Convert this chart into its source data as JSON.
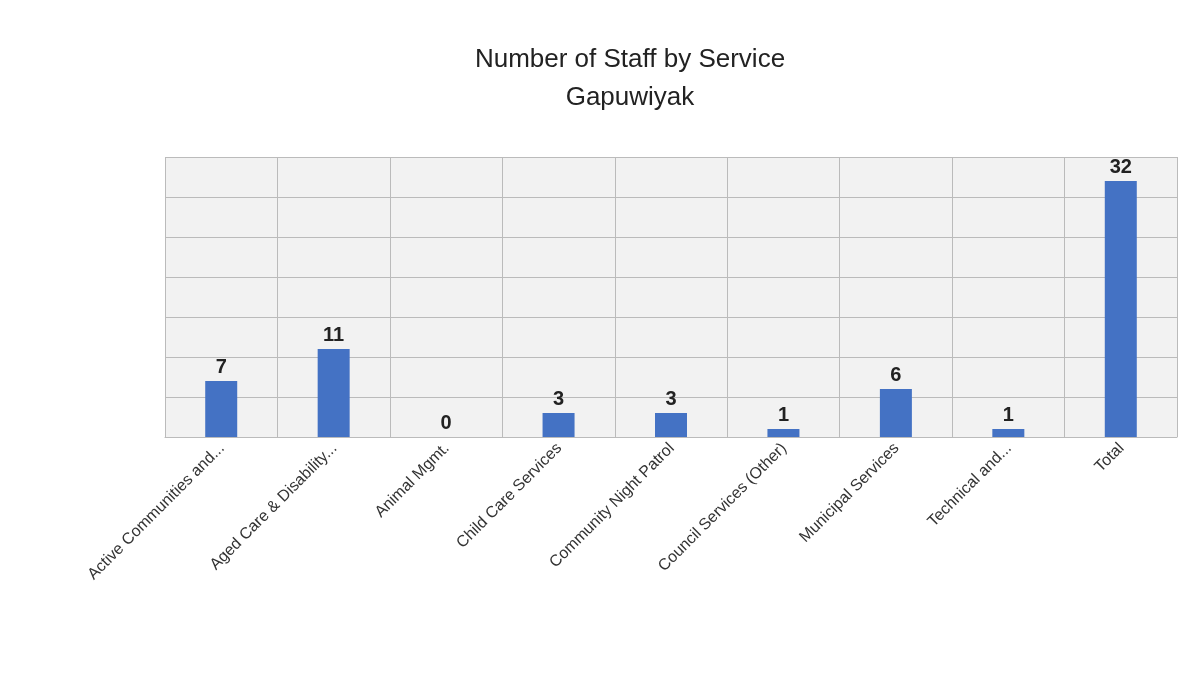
{
  "chart_data": {
    "type": "bar",
    "title": "Number of Staff by Service",
    "subtitle": "Gapuwiyak",
    "categories": [
      "Active Communities and...",
      "Aged Care & Disability...",
      "Animal Mgmt.",
      "Child Care Services",
      "Community Night Patrol",
      "Council Services (Other)",
      "Municipal Services",
      "Technical and...",
      "Total"
    ],
    "values": [
      7,
      11,
      0,
      3,
      3,
      1,
      6,
      1,
      32
    ],
    "color": "#4472c4",
    "ylim": [
      0,
      35
    ],
    "yticks": [
      0,
      5,
      10,
      15,
      20,
      25,
      30,
      35
    ],
    "tick_labels": "x",
    "grid": true,
    "data_labels": true
  }
}
